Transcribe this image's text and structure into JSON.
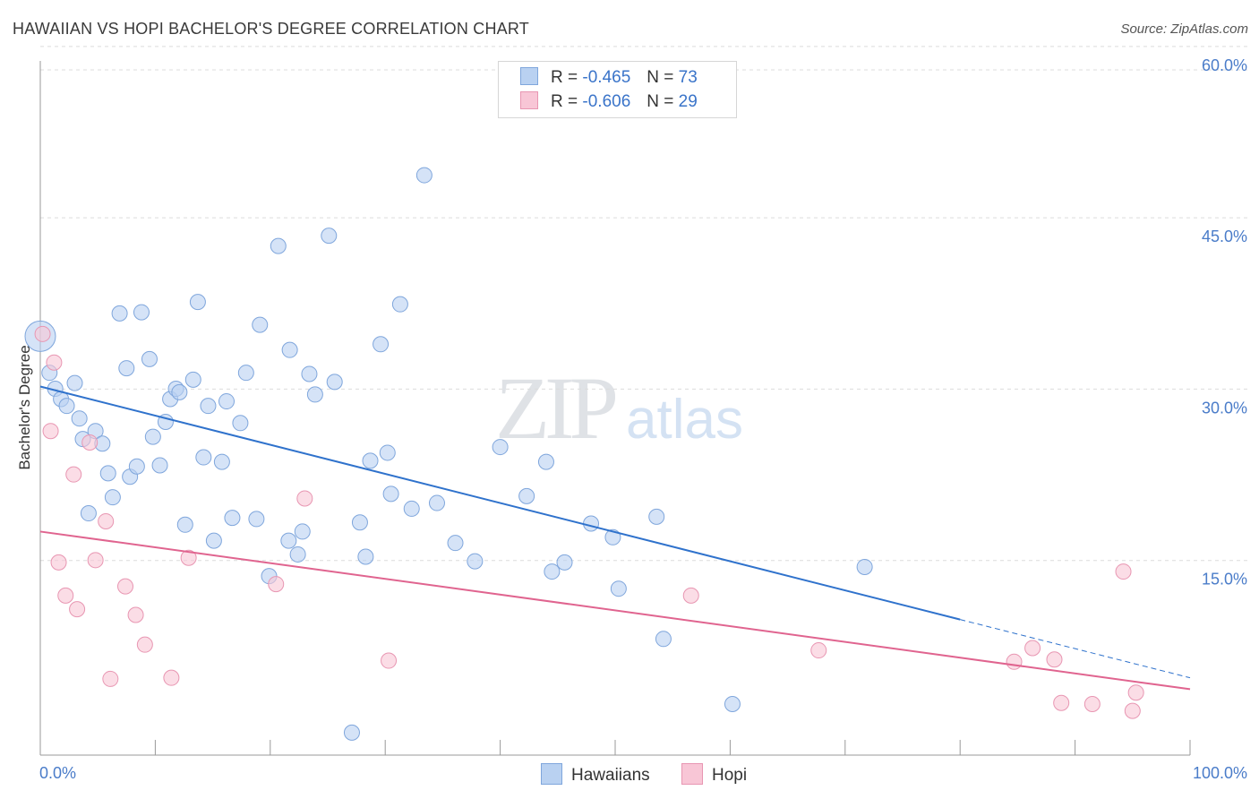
{
  "title": "HAWAIIAN VS HOPI BACHELOR'S DEGREE CORRELATION CHART",
  "source": "Source: ZipAtlas.com",
  "watermark": {
    "zip": "ZIP",
    "atlas": "atlas"
  },
  "legend": {
    "rows": [
      {
        "r_label": "R =",
        "r_value": "-0.465",
        "n_label": "N =",
        "n_value": "73"
      },
      {
        "r_label": "R =",
        "r_value": "-0.606",
        "n_label": "N =",
        "n_value": "29"
      }
    ]
  },
  "colors": {
    "hawaiians_fill": "#b9d1f1",
    "hawaiians_stroke": "#7fa6dc",
    "hawaiians_line": "#2f72cc",
    "hopi_fill": "#f8c6d6",
    "hopi_stroke": "#e896b2",
    "hopi_line": "#e0648f",
    "tick_label": "#4a7cc9",
    "grid": "#dcdcdc"
  },
  "chart_data": {
    "type": "scatter",
    "title": "HAWAIIAN VS HOPI BACHELOR'S DEGREE CORRELATION CHART",
    "xlabel": "",
    "ylabel": "Bachelor's Degree",
    "xlim": [
      0,
      100
    ],
    "ylim": [
      0,
      60
    ],
    "x_tick_labels": [
      "0.0%",
      "100.0%"
    ],
    "y_ticks": [
      15,
      30,
      45,
      60
    ],
    "y_tick_labels": [
      "15.0%",
      "30.0%",
      "45.0%",
      "60.0%"
    ],
    "grid": true,
    "legend_position": "top-center",
    "series": [
      {
        "name": "Hawaiians",
        "r": -0.465,
        "n": 73,
        "trend": {
          "x": [
            0,
            80
          ],
          "y": [
            31.8,
            11.4
          ],
          "dashed_to": [
            100,
            6.3
          ]
        },
        "points": [
          [
            0,
            36.2
          ],
          [
            0.8,
            33.0
          ],
          [
            1.3,
            31.6
          ],
          [
            1.8,
            30.7
          ],
          [
            2.3,
            30.1
          ],
          [
            3.0,
            32.1
          ],
          [
            3.4,
            29.0
          ],
          [
            3.7,
            27.2
          ],
          [
            4.2,
            20.7
          ],
          [
            4.8,
            27.9
          ],
          [
            5.4,
            26.8
          ],
          [
            5.9,
            24.2
          ],
          [
            6.3,
            22.1
          ],
          [
            6.9,
            38.2
          ],
          [
            7.5,
            33.4
          ],
          [
            7.8,
            23.9
          ],
          [
            8.4,
            24.8
          ],
          [
            8.8,
            38.3
          ],
          [
            9.5,
            34.2
          ],
          [
            9.8,
            27.4
          ],
          [
            10.4,
            24.9
          ],
          [
            10.9,
            28.7
          ],
          [
            11.3,
            30.7
          ],
          [
            11.8,
            31.6
          ],
          [
            12.1,
            31.3
          ],
          [
            12.6,
            19.7
          ],
          [
            13.3,
            32.4
          ],
          [
            13.7,
            39.2
          ],
          [
            14.2,
            25.6
          ],
          [
            14.6,
            30.1
          ],
          [
            15.1,
            18.3
          ],
          [
            15.8,
            25.2
          ],
          [
            16.2,
            30.5
          ],
          [
            16.7,
            20.3
          ],
          [
            17.4,
            28.6
          ],
          [
            17.9,
            33.0
          ],
          [
            18.8,
            20.2
          ],
          [
            19.1,
            37.2
          ],
          [
            19.9,
            15.2
          ],
          [
            20.7,
            44.1
          ],
          [
            21.6,
            18.3
          ],
          [
            21.7,
            35.0
          ],
          [
            22.4,
            17.1
          ],
          [
            22.8,
            19.1
          ],
          [
            23.4,
            32.9
          ],
          [
            23.9,
            31.1
          ],
          [
            25.1,
            45.0
          ],
          [
            25.6,
            32.2
          ],
          [
            28.3,
            16.9
          ],
          [
            27.1,
            1.5
          ],
          [
            27.8,
            19.9
          ],
          [
            28.7,
            25.3
          ],
          [
            29.6,
            35.5
          ],
          [
            30.2,
            26.0
          ],
          [
            30.5,
            22.4
          ],
          [
            31.3,
            39.0
          ],
          [
            32.3,
            21.1
          ],
          [
            33.4,
            50.3
          ],
          [
            34.5,
            21.6
          ],
          [
            36.1,
            18.1
          ],
          [
            37.8,
            16.5
          ],
          [
            40.0,
            26.5
          ],
          [
            42.3,
            22.2
          ],
          [
            44.0,
            25.2
          ],
          [
            44.5,
            15.6
          ],
          [
            45.6,
            16.4
          ],
          [
            47.9,
            19.8
          ],
          [
            49.8,
            18.6
          ],
          [
            50.3,
            14.1
          ],
          [
            53.6,
            20.4
          ],
          [
            54.2,
            9.7
          ],
          [
            60.2,
            4.0
          ],
          [
            71.7,
            16.0
          ]
        ]
      },
      {
        "name": "Hopi",
        "r": -0.606,
        "n": 29,
        "trend": {
          "x": [
            0,
            100
          ],
          "y": [
            19.1,
            5.3
          ]
        },
        "points": [
          [
            0.2,
            36.4
          ],
          [
            0.9,
            27.9
          ],
          [
            1.2,
            33.9
          ],
          [
            1.6,
            16.4
          ],
          [
            2.2,
            13.5
          ],
          [
            2.9,
            24.1
          ],
          [
            3.2,
            12.3
          ],
          [
            4.3,
            26.9
          ],
          [
            4.8,
            16.6
          ],
          [
            5.7,
            20.0
          ],
          [
            6.1,
            6.2
          ],
          [
            7.4,
            14.3
          ],
          [
            8.3,
            11.8
          ],
          [
            9.1,
            9.2
          ],
          [
            11.4,
            6.3
          ],
          [
            12.9,
            16.8
          ],
          [
            20.5,
            14.5
          ],
          [
            23.0,
            22.0
          ],
          [
            30.3,
            7.8
          ],
          [
            56.6,
            13.5
          ],
          [
            67.7,
            8.7
          ],
          [
            84.7,
            7.7
          ],
          [
            86.3,
            8.9
          ],
          [
            88.2,
            7.9
          ],
          [
            88.8,
            4.1
          ],
          [
            91.5,
            4.0
          ],
          [
            94.2,
            15.6
          ],
          [
            95.0,
            3.4
          ],
          [
            95.3,
            5.0
          ]
        ]
      }
    ]
  }
}
